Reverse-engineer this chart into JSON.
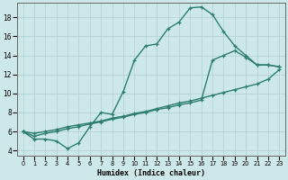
{
  "xlabel": "Humidex (Indice chaleur)",
  "background_color": "#cde8e8",
  "grid_color": "#b2d0d0",
  "line_color": "#2e7d6e",
  "xlim": [
    -0.5,
    23.5
  ],
  "ylim": [
    3.5,
    19.5
  ],
  "xticks": [
    0,
    1,
    2,
    3,
    4,
    5,
    6,
    7,
    8,
    9,
    10,
    11,
    12,
    13,
    14,
    15,
    16,
    17,
    18,
    19,
    20,
    21,
    22,
    23
  ],
  "yticks": [
    4,
    6,
    8,
    10,
    12,
    14,
    16,
    18
  ],
  "line1_x": [
    0,
    1,
    2,
    3,
    4,
    5,
    6,
    7,
    8,
    9,
    10,
    11,
    12,
    13,
    14,
    15,
    16,
    17,
    18,
    19,
    20,
    21,
    22,
    23
  ],
  "line1_y": [
    6.0,
    5.2,
    5.2,
    5.0,
    4.2,
    4.8,
    6.5,
    8.0,
    7.8,
    10.2,
    13.5,
    15.0,
    15.2,
    16.8,
    17.5,
    19.0,
    19.1,
    18.3,
    16.5,
    15.0,
    14.0,
    13.0,
    13.0,
    12.8
  ],
  "line2_x": [
    0,
    1,
    2,
    3,
    4,
    5,
    6,
    7,
    8,
    9,
    10,
    11,
    12,
    13,
    14,
    15,
    16,
    17,
    18,
    19,
    20,
    21,
    22,
    23
  ],
  "line2_y": [
    6.0,
    5.5,
    5.8,
    6.0,
    6.3,
    6.5,
    6.8,
    7.0,
    7.3,
    7.5,
    7.8,
    8.0,
    8.3,
    8.5,
    8.8,
    9.0,
    9.3,
    13.5,
    14.0,
    14.5,
    13.8,
    13.0,
    13.0,
    12.8
  ],
  "line3_x": [
    0,
    1,
    2,
    3,
    4,
    5,
    6,
    7,
    8,
    9,
    10,
    11,
    12,
    13,
    14,
    15,
    16,
    17,
    18,
    19,
    20,
    21,
    22,
    23
  ],
  "line3_y": [
    6.0,
    5.8,
    6.0,
    6.2,
    6.5,
    6.7,
    6.9,
    7.1,
    7.4,
    7.6,
    7.9,
    8.1,
    8.4,
    8.7,
    9.0,
    9.2,
    9.5,
    9.8,
    10.1,
    10.4,
    10.7,
    11.0,
    11.5,
    12.5
  ],
  "linewidth": 1.0,
  "marker_size": 2.8
}
